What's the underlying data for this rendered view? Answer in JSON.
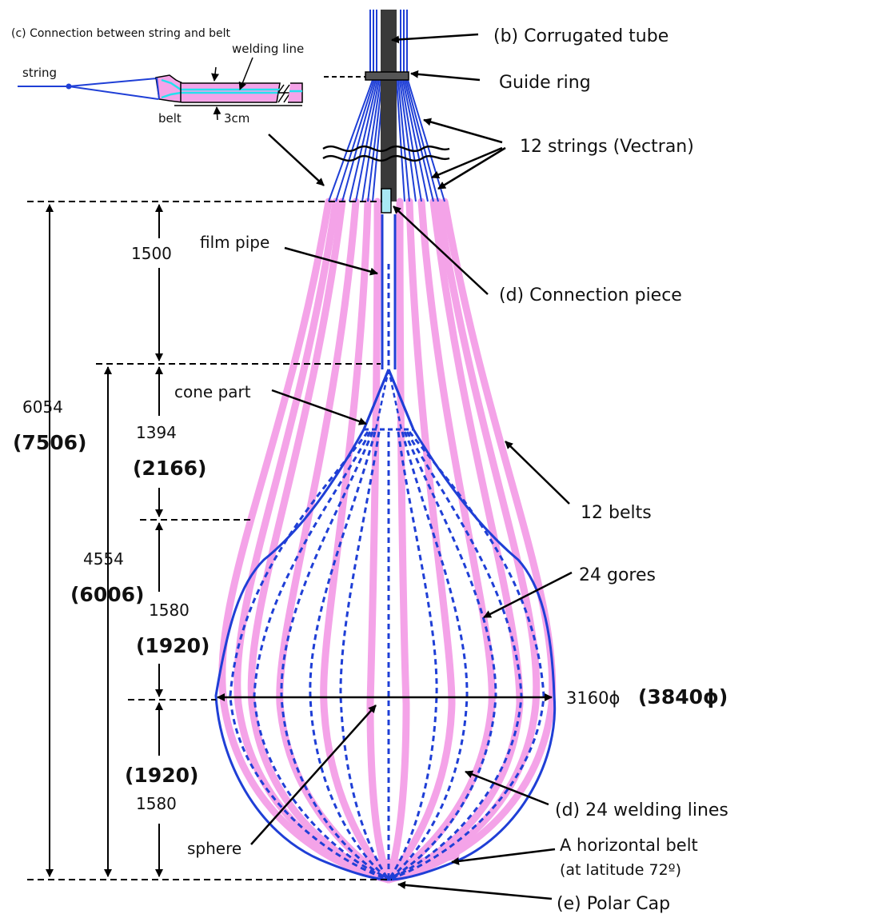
{
  "inset": {
    "title": "(c) Connection between string and belt",
    "string": "string",
    "welding_line": "welding line",
    "belt": "belt",
    "width": "3cm"
  },
  "labels": {
    "corrugated_tube": "(b) Corrugated tube",
    "guide_ring": "Guide ring",
    "strings": "12 strings (Vectran)",
    "film_pipe": "film pipe",
    "connection_piece": "(d) Connection piece",
    "cone_part": "cone part",
    "belts": "12 belts",
    "gores": "24 gores",
    "diameter": "3160ϕ",
    "diameter_big": "(3840ϕ)",
    "welding_lines": "(d) 24 welding lines",
    "sphere": "sphere",
    "horizontal_belt_1": "A horizontal belt",
    "horizontal_belt_2": "(at latitude 72º)",
    "polar_cap": "(e) Polar Cap"
  },
  "dimensions": {
    "total": "6054",
    "total_big": "(7506)",
    "body": "4554",
    "body_big": "(6006)",
    "pipe": "1500",
    "cone": "1394",
    "cone_big": "(2166)",
    "upper": "1580",
    "upper_big": "(1920)",
    "lower": "1580",
    "lower_big": "(1920)"
  },
  "colors": {
    "belt": "#f4a3e8",
    "string": "#1f3fd6",
    "tube": "#3a3a3a",
    "connection": "#a8e8f4",
    "welding": "#25e0ee"
  }
}
